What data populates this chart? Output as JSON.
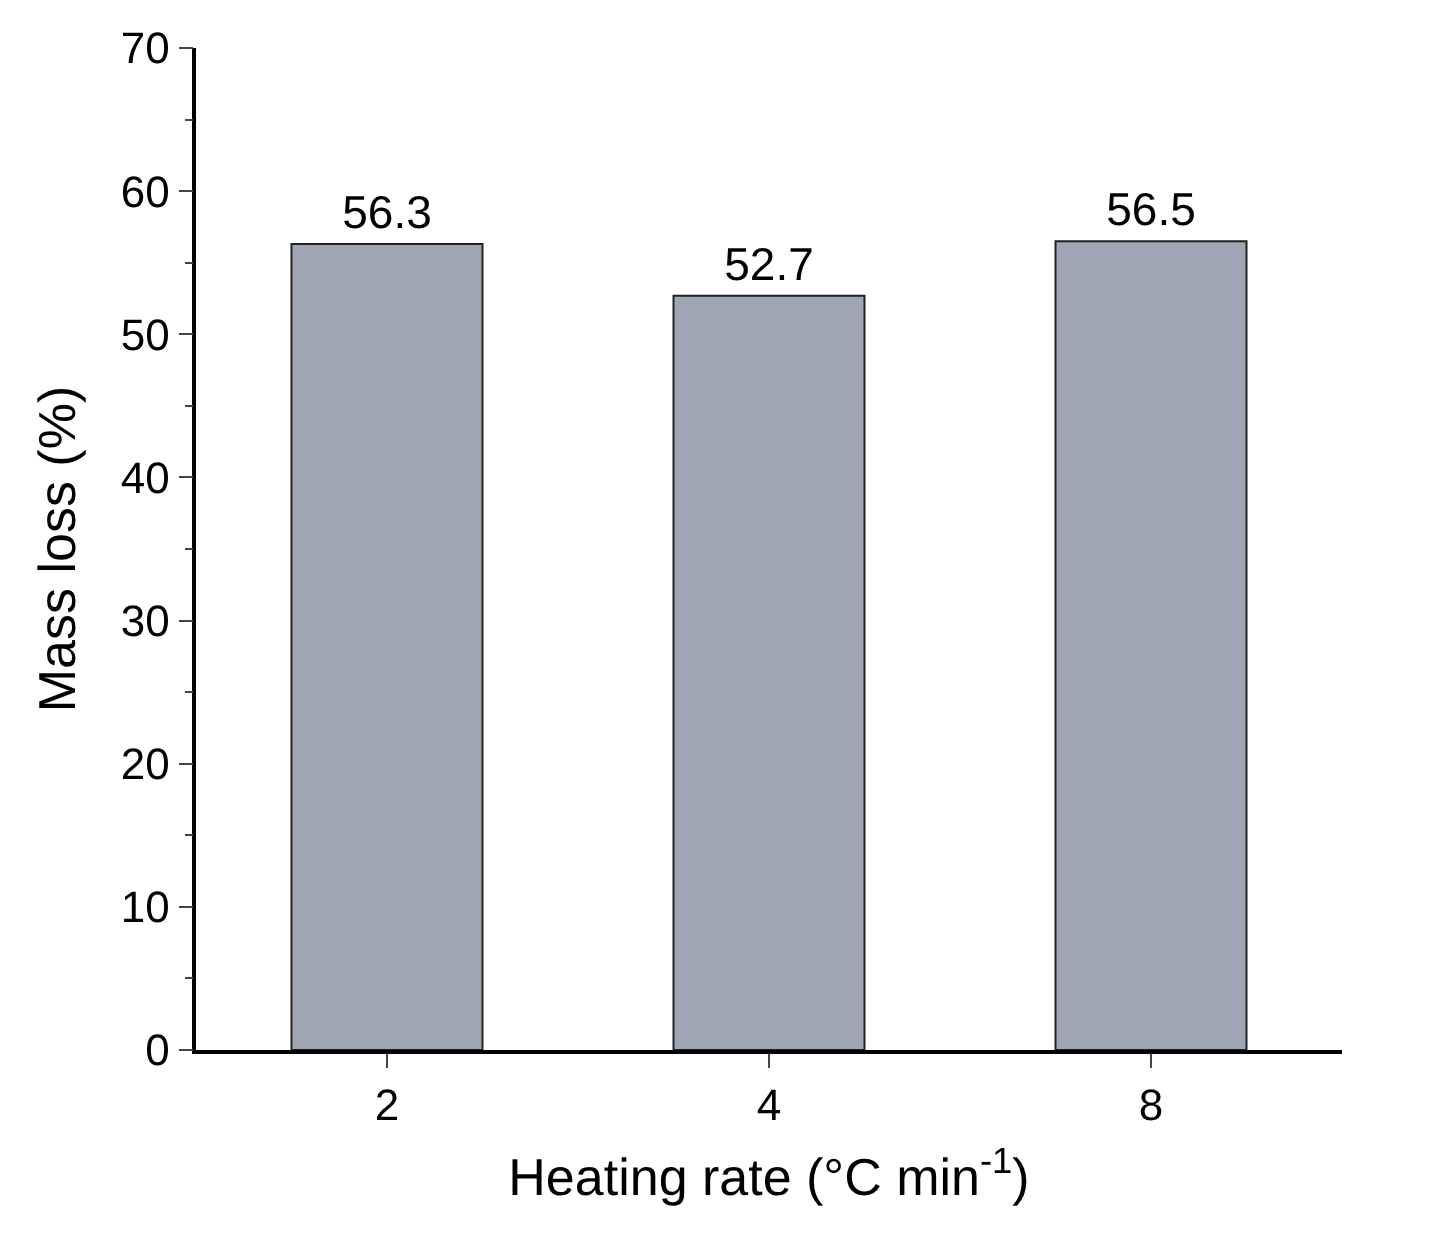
{
  "chart_data": {
    "type": "bar",
    "xlabel": "Heating rate (°C min$^{-1}$)",
    "ylabel": "Mass loss (%)",
    "categories": [
      "2",
      "4",
      "8"
    ],
    "values": [
      56.3,
      52.7,
      56.5
    ],
    "color": "#a0a5b5",
    "ylim": [
      0,
      70
    ],
    "yticks": [
      0,
      10,
      20,
      30,
      40,
      50,
      60,
      70
    ],
    "data_labels": true
  }
}
